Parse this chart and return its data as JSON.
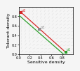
{
  "xlim": [
    0,
    1
  ],
  "ylim": [
    0,
    1
  ],
  "xlabel": "Sensitive density",
  "ylabel": "Tolerant density",
  "points": {
    "p1": [
      0.86,
      0.04
    ],
    "p2": [
      0.04,
      0.88
    ],
    "p3": [
      0.38,
      0.52
    ]
  },
  "point_colors": {
    "p1": "#2ca02c",
    "p2": "#d62728",
    "p3": "#888888"
  },
  "red_line": [
    [
      0.04,
      0.88
    ],
    [
      0.86,
      0.04
    ]
  ],
  "green_line": [
    [
      0.0,
      0.82
    ],
    [
      0.82,
      0.0
    ]
  ],
  "arrow_color": "#cccccc",
  "background": "#f5f5f5",
  "tick_vals": [
    0,
    0.2,
    0.4,
    0.6,
    0.8
  ],
  "xlabel_fontsize": 4.5,
  "ylabel_fontsize": 4.5,
  "tick_fontsize": 3.5,
  "nx": 14,
  "ny": 14
}
